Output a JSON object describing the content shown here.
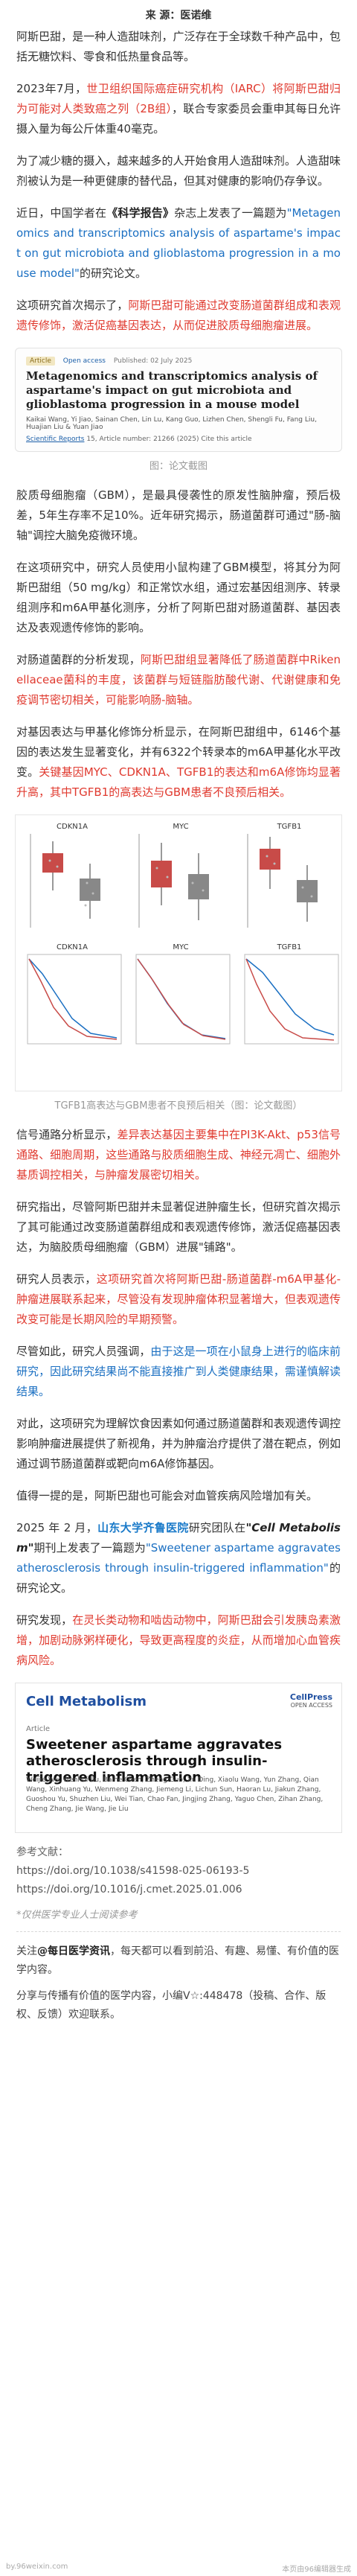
{
  "source_line": "来 源：医诺维",
  "p1": "阿斯巴甜，是一种人造甜味剂，广泛存在于全球数千种产品中，包括无糖饮料、零食和低热量食品等。",
  "p2_a": "2023年7月，",
  "p2_red": "世卫组织国际癌症研究机构（IARC）将阿斯巴甜归为可能对人类致癌之列（2B组）",
  "p2_b": "，联合专家委员会重申其每日允许摄入量为每公斤体重40毫克。",
  "p3_a": "为了减少糖的摄入，越来越多的人开始食用人造甜味剂。人造甜味剂被认为是一种更健康的替代品，但其对健康的影响仍存争议。",
  "p4_a": "近日，中国学者在",
  "p4_journal": "《科学报告》",
  "p4_b": "杂志上发表了一篇题为",
  "p4_title": "\"Metagenomics and transcriptomics analysis of aspartame's impact on gut microbiota and glioblastoma progression in a mouse model\"",
  "p4_c": "的研究论文。",
  "p5_a": "这项研究首次揭示了，",
  "p5_red": "阿斯巴甜可能通过改变肠道菌群组成和表观遗传修饰，激活促癌基因表达，从而促进胶质母细胞瘤进展。",
  "paper1": {
    "tag": "Article",
    "open": "Open access",
    "published": "Published: 02 July 2025",
    "title": "Metagenomics and transcriptomics analysis of aspartame's impact on gut microbiota and glioblastoma progression in a mouse model",
    "authors": "Kaikai Wang, Yi Jiao, Sainan Chen, Lin Lu, Kang Guo, Lizhen Chen, Shengli Fu, Fang Liu, Huajian Liu & Yuan Jiao",
    "journal": "Scientific Reports",
    "vol": "15, Article number: 21266 (2025)  Cite this article"
  },
  "caption1": "图：论文截图",
  "p6": "胶质母细胞瘤（GBM），是最具侵袭性的原发性脑肿瘤，预后极差，5年生存率不足10%。近年研究揭示，肠道菌群可通过\"肠-脑轴\"调控大脑免疫微环境。",
  "p7": "在这项研究中，研究人员使用小鼠构建了GBM模型，将其分为阿斯巴甜组（50 mg/kg）和正常饮水组，通过宏基因组测序、转录组测序和m6A甲基化测序，分析了阿斯巴甜对肠道菌群、基因表达及表观遗传修饰的影响。",
  "p8_a": "对肠道菌群的分析发现，",
  "p8_red": "阿斯巴甜组显著降低了肠道菌群中Rikenellaceae菌科的丰度，该菌群与短链脂肪酸代谢、代谢健康和免疫调节密切相关，可能影响肠-脑轴。",
  "p9_a": "对基因表达与甲基化修饰分析显示，在阿斯巴甜组中，6146个基因的表达发生显著变化，并有6322个转录本的m6A甲基化水平改变。",
  "p9_red": "关键基因MYC、CDKN1A、TGFB1的表达和m6A修饰均显著升高，其中TGFB1的高表达与GBM患者不良预后相关。",
  "figure": {
    "boxes": [
      "CDKN1A",
      "MYC",
      "TGFB1"
    ],
    "kms": [
      "CDKN1A",
      "MYC",
      "TGFB1"
    ]
  },
  "caption2": "TGFB1高表达与GBM患者不良预后相关（图：论文截图）",
  "p10_a": "信号通路分析显示，",
  "p10_red": "差异表达基因主要集中在PI3K-Akt、p53信号通路、细胞周期，这些通路与胶质细胞生成、神经元凋亡、细胞外基质调控相关，与肿瘤发展密切相关。",
  "p11_a": "研究指出，尽管阿斯巴甜并未显著促进肿瘤生长，但研究首次揭示了其可能通过改变肠道菌群组成和表观遗传修饰，激活促癌基因表达，为脑胶质母细胞瘤（GBM）进展\"铺路\"。",
  "p12_a": "研究人员表示，",
  "p12_red": "这项研究首次将阿斯巴甜-肠道菌群-m6A甲基化-肿瘤进展联系起来，尽管没有发现肿瘤体积显著增大，但表观遗传改变可能是长期风险的早期预警。",
  "p13_a": "尽管如此，研究人员强调，",
  "p13_blue": "由于这是一项在小鼠身上进行的临床前研究，因此研究结果尚不能直接推广到人类健康结果，需谨慎解读结果。",
  "p14": "对此，这项研究为理解饮食因素如何通过肠道菌群和表观遗传调控影响肿瘤进展提供了新视角，并为肿瘤治疗提供了潜在靶点，例如通过调节肠道菌群或靶向m6A修饰基因。",
  "p15": "值得一提的是，阿斯巴甜也可能会对血管疾病风险增加有关。",
  "p16_a": "2025 年 2 月，",
  "p16_blue": "山东大学齐鲁医院",
  "p16_b": "研究团队在",
  "p16_journal": "\"Cell Metabolism\"",
  "p16_c": "期刊上发表了一篇题为",
  "p16_title": "\"Sweetener aspartame aggravates atherosclerosis through insulin-triggered inflammation\"",
  "p16_d": "的研究论文。",
  "p17_a": "研究发现，",
  "p17_red": "在灵长类动物和啮齿动物中，阿斯巴甜会引发胰岛素激增，加剧动脉粥样硬化，导致更高程度的炎症，从而增加心血管疾病风险。",
  "paper2": {
    "logo": "Cell Metabolism",
    "cellpress": "CellPress",
    "cellpress_sub": "OPEN ACCESS",
    "article": "Article",
    "title": "Sweetener aspartame aggravates atherosclerosis through insulin-triggered inflammation",
    "authors": "Weijie Wu, Wenhui Bu, Baihe Chen, Zheng Guo, Xu Ding, Xiaolu Wang, Yun Zhang, Qian Wang, Xinhuang Yu, Wenmeng Zhang, Jiemeng Li, Lichun Sun, Haoran Lu, Jiakun Zhang, Guoshou Yu, Shuzhen Liu, Wei Tian, Chao Fan, Jingjing Zhang, Yaguo Chen, Zihan Zhang, Cheng Zhang, Jie Wang, Jie Liu"
  },
  "refs_head": "参考文献：",
  "refs": [
    "https://doi.org/10.1038/s41598-025-06193-5",
    "https://doi.org/10.1016/j.cmet.2025.01.006"
  ],
  "note": "*仅供医学专业人士阅读参考",
  "footer1_a": "关注",
  "footer1_bold": "@每日医学资讯",
  "footer1_b": "，每天都可以看到前沿、有趣、易懂、有价值的医学内容。",
  "footer2": "分享与传播有价值的医学内容，小编V☆:448478（投稿、合作、版权、反馈）欢迎联系。",
  "bottom_left": "by.96weixin.com",
  "bottom_right": "本页由96编辑器生成"
}
